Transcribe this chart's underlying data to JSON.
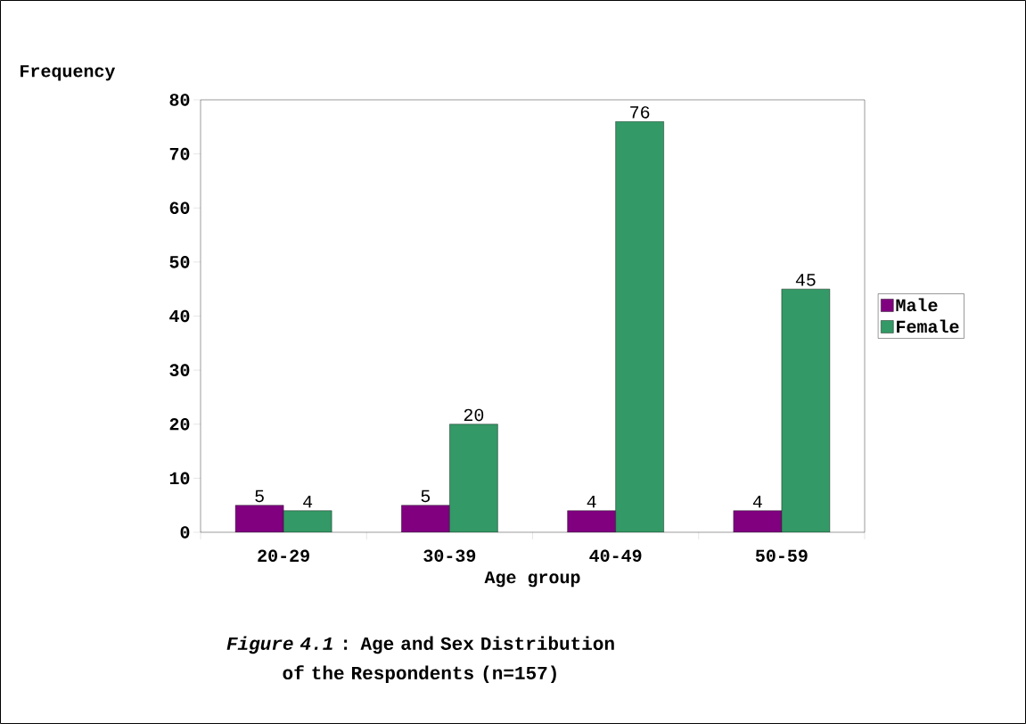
{
  "chart_data": {
    "type": "bar",
    "title": "*Figure 4.1* : Age and Sex Distribution of the Respondents (n=157)",
    "xlabel": "Age group",
    "ylabel": "Frequency",
    "categories": [
      "20-29",
      "30-39",
      "40-49",
      "50-59"
    ],
    "series": [
      {
        "name": "Male",
        "color": "#800080",
        "values": [
          5,
          5,
          4,
          4
        ]
      },
      {
        "name": "Female",
        "color": "#339966",
        "values": [
          4,
          20,
          76,
          45
        ]
      }
    ],
    "ylim": [
      0,
      80
    ],
    "yticks": [
      0,
      10,
      20,
      30,
      40,
      50,
      60,
      70,
      80
    ],
    "data_labels": true,
    "grid": false,
    "legend": "right"
  }
}
